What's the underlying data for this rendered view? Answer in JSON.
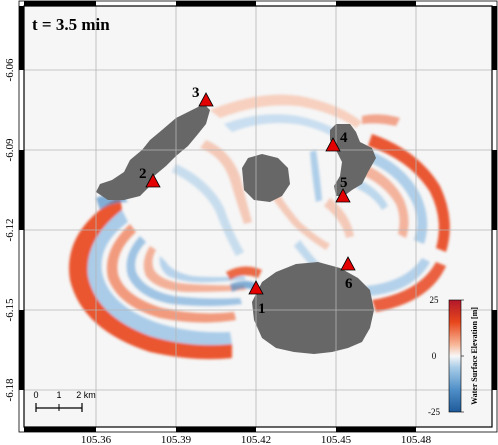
{
  "time_label": "t = 3.5 min",
  "x_ticks": [
    "105.36",
    "105.39",
    "105.42",
    "105.45",
    "105.48"
  ],
  "y_ticks": [
    "-6.06",
    "-6.09",
    "-6.12",
    "-6.15",
    "-6.18"
  ],
  "stations": [
    {
      "id": "1",
      "label": "1"
    },
    {
      "id": "2",
      "label": "2"
    },
    {
      "id": "3",
      "label": "3"
    },
    {
      "id": "4",
      "label": "4"
    },
    {
      "id": "5",
      "label": "5"
    },
    {
      "id": "6",
      "label": "6"
    }
  ],
  "colorbar": {
    "max_label": "25",
    "mid_label": "0",
    "min_label": "-25",
    "title": "Water Surface Elevation [m]"
  },
  "scalebar": {
    "labels": [
      "0",
      "1",
      "2 km"
    ]
  },
  "colors": {
    "land": "#676767",
    "positive": "#e8471c",
    "negative": "#4f8fc8",
    "station_marker": "#e30000"
  }
}
